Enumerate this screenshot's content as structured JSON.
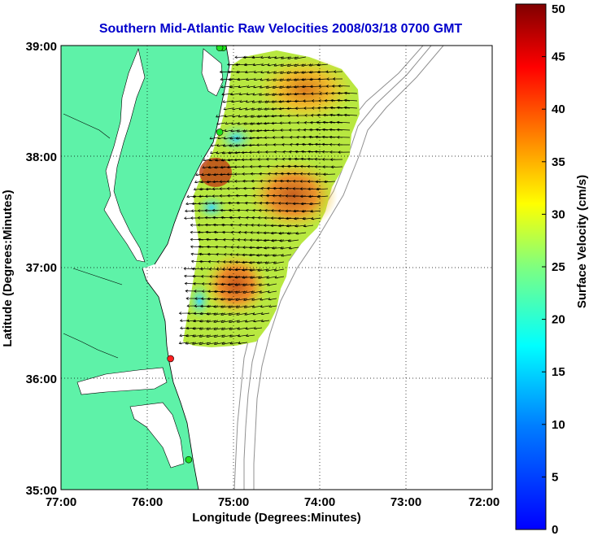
{
  "title": "Southern Mid-Atlantic Raw Velocities 2008/03/18 0700 GMT",
  "map": {
    "x_axis_label": "Longitude (Degrees:Minutes)",
    "y_axis_label": "Latitude (Degrees:Minutes)",
    "x_ticks": [
      "77:00",
      "76:00",
      "75:00",
      "74:00",
      "73:00",
      "72:00"
    ],
    "y_ticks": [
      "39:00",
      "38:00",
      "37:00",
      "36:00",
      "35:00"
    ],
    "lon_range": [
      -77,
      -72
    ],
    "lat_range": [
      35,
      39
    ],
    "grid": "dotted",
    "land_color": "#5ef2a8",
    "title_color": "#0000cc",
    "stations": [
      {
        "lon": -75.12,
        "lat": 38.98,
        "color": "green"
      },
      {
        "lon": -75.16,
        "lat": 38.98,
        "color": "green"
      },
      {
        "lon": -75.16,
        "lat": 38.22,
        "color": "green"
      },
      {
        "lon": -75.73,
        "lat": 36.18,
        "color": "red"
      },
      {
        "lon": -75.52,
        "lat": 35.27,
        "color": "green"
      }
    ]
  },
  "colorbar": {
    "label": "Surface Velocity (cm/s)",
    "ticks": [
      "50",
      "45",
      "40",
      "35",
      "30",
      "25",
      "20",
      "15",
      "10",
      "5",
      "0"
    ],
    "min": 0,
    "max": 50,
    "colormap": "jet"
  }
}
